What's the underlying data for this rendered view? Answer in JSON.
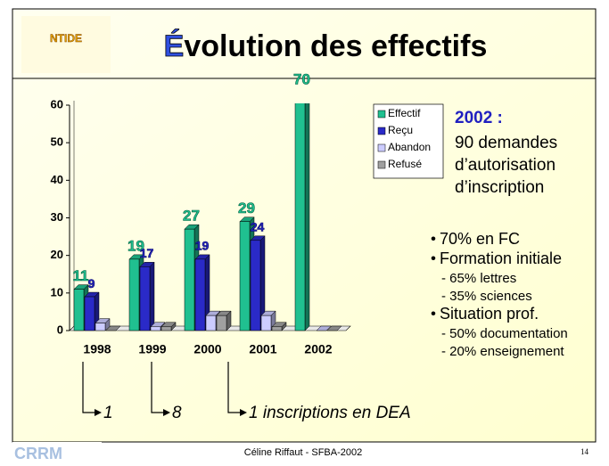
{
  "header": {
    "logo": "NTIDE",
    "title_initial": "É",
    "title_rest": "volution des effectifs"
  },
  "chart_data": {
    "type": "bar3d",
    "categories": [
      "1998",
      "1999",
      "2000",
      "2001",
      "2002"
    ],
    "series": [
      {
        "name": "Effectif",
        "color": "#20c090",
        "values": [
          11,
          19,
          27,
          29,
          70
        ],
        "data_labels": true
      },
      {
        "name": "Reçu",
        "color": "#2a2ac8",
        "values": [
          9,
          17,
          19,
          24,
          null
        ],
        "data_labels": true
      },
      {
        "name": "Abandon",
        "color": "#ccccff",
        "values": [
          2,
          1,
          4,
          4,
          0
        ],
        "data_labels": false
      },
      {
        "name": "Refusé",
        "color": "#a0a0a0",
        "values": [
          0,
          1,
          4,
          1,
          0
        ],
        "data_labels": false
      }
    ],
    "ylim": [
      0,
      60
    ],
    "yticks": [
      0,
      10,
      20,
      30,
      40,
      50,
      60
    ],
    "grid": false,
    "legend": "right"
  },
  "notes": {
    "heading": "2002 :",
    "lines": [
      "90 demandes",
      "d’autorisation",
      "d’inscription"
    ],
    "bullets": [
      {
        "text": "70% en FC",
        "sub": []
      },
      {
        "text": "Formation initiale",
        "sub": [
          "- 65% lettres",
          "- 35% sciences"
        ]
      },
      {
        "text": "Situation prof.",
        "sub": [
          "- 50% documentation",
          "- 20% enseignement"
        ]
      }
    ]
  },
  "arrows": [
    "1",
    "8",
    "1  inscriptions en DEA"
  ],
  "footer": {
    "author": "Céline Riffaut - SFBA-2002",
    "page": "14",
    "logo": "CRRM"
  }
}
